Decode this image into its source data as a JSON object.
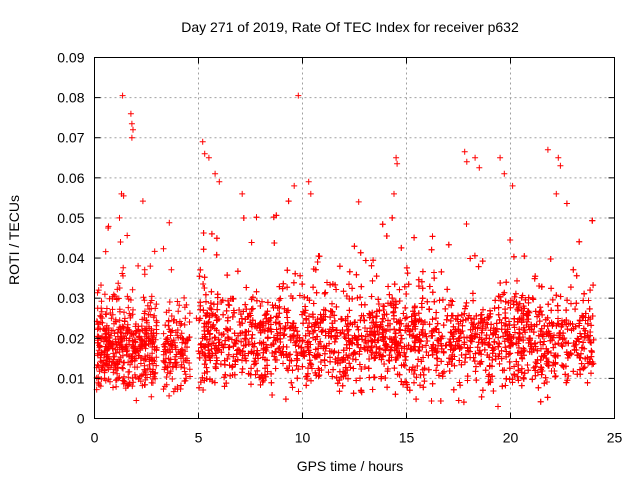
{
  "chart_data": {
    "type": "scatter",
    "title": "Day 271 of 2019, Rate Of TEC Index for receiver p632",
    "xlabel": "GPS time / hours",
    "ylabel": "ROTI / TECUs",
    "xlim": [
      0,
      25
    ],
    "ylim": [
      0,
      0.09
    ],
    "x_ticks": [
      0,
      5,
      10,
      15,
      20,
      25
    ],
    "x_tick_labels": [
      "0",
      "5",
      "10",
      "15",
      "20",
      "25"
    ],
    "y_ticks": [
      0,
      0.01,
      0.02,
      0.03,
      0.04,
      0.05,
      0.06,
      0.07,
      0.08,
      0.09
    ],
    "y_tick_labels": [
      "0",
      "0.01",
      "0.02",
      "0.03",
      "0.04",
      "0.05",
      "0.06",
      "0.07",
      "0.08",
      "0.09"
    ],
    "grid": true,
    "marker": "+",
    "color": "#ff0000",
    "series": [
      {
        "name": "ROTI",
        "density_profile": [
          {
            "x_range": [
              0.1,
              3.0
            ],
            "y_center": 0.018,
            "y_spread": 0.007,
            "points": 480
          },
          {
            "x_range": [
              3.3,
              4.6
            ],
            "y_center": 0.017,
            "y_spread": 0.006,
            "points": 150
          },
          {
            "x_range": [
              5.0,
              24.0
            ],
            "y_center": 0.02,
            "y_spread": 0.008,
            "points": 3600
          }
        ],
        "highlights": [
          {
            "x": 1.35,
            "y": 0.0805
          },
          {
            "x": 1.75,
            "y": 0.076
          },
          {
            "x": 1.8,
            "y": 0.0735
          },
          {
            "x": 1.85,
            "y": 0.072
          },
          {
            "x": 1.8,
            "y": 0.07
          },
          {
            "x": 1.3,
            "y": 0.056
          },
          {
            "x": 1.4,
            "y": 0.0555
          },
          {
            "x": 1.2,
            "y": 0.05
          },
          {
            "x": 1.25,
            "y": 0.044
          },
          {
            "x": 9.8,
            "y": 0.0805
          },
          {
            "x": 5.2,
            "y": 0.069
          },
          {
            "x": 5.3,
            "y": 0.066
          },
          {
            "x": 5.5,
            "y": 0.065
          },
          {
            "x": 5.8,
            "y": 0.061
          },
          {
            "x": 6.0,
            "y": 0.059
          },
          {
            "x": 7.1,
            "y": 0.056
          },
          {
            "x": 9.6,
            "y": 0.058
          },
          {
            "x": 10.3,
            "y": 0.059
          },
          {
            "x": 10.4,
            "y": 0.056
          },
          {
            "x": 12.7,
            "y": 0.054
          },
          {
            "x": 14.5,
            "y": 0.065
          },
          {
            "x": 14.55,
            "y": 0.0635
          },
          {
            "x": 14.4,
            "y": 0.056
          },
          {
            "x": 17.8,
            "y": 0.0665
          },
          {
            "x": 17.9,
            "y": 0.064
          },
          {
            "x": 18.3,
            "y": 0.065
          },
          {
            "x": 18.5,
            "y": 0.0625
          },
          {
            "x": 19.5,
            "y": 0.065
          },
          {
            "x": 19.7,
            "y": 0.061
          },
          {
            "x": 20.1,
            "y": 0.058
          },
          {
            "x": 21.8,
            "y": 0.067
          },
          {
            "x": 22.3,
            "y": 0.065
          },
          {
            "x": 22.4,
            "y": 0.063
          },
          {
            "x": 22.2,
            "y": 0.056
          },
          {
            "x": 4.9,
            "y": 0.025
          },
          {
            "x": 19.4,
            "y": 0.003
          },
          {
            "x": 0.2,
            "y": 0.032
          },
          {
            "x": 0.5,
            "y": 0.031
          }
        ]
      }
    ]
  }
}
